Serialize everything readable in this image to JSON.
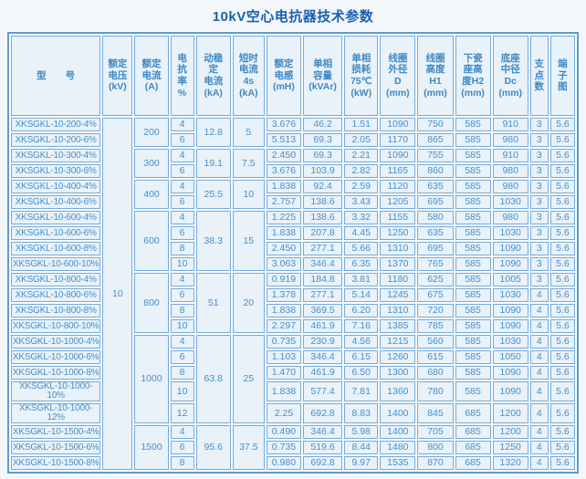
{
  "title": "10kV空心电抗器技术参数",
  "colors": {
    "title_text": "#1a61ae",
    "cell_text": "#4590c9",
    "cell_border": "#74abda",
    "outer_border": "#5b9bd5",
    "cell_background": "#e9f1f9",
    "page_background": "#f3f7fb"
  },
  "table": {
    "rated_voltage_kv": "10",
    "columns": [
      {
        "id": "model",
        "label": "型　　号"
      },
      {
        "id": "rated_voltage",
        "label": "额定\n电压\n(kV)"
      },
      {
        "id": "rated_current",
        "label": "额定\n电流\n(A)"
      },
      {
        "id": "reactance_rate",
        "label": "电\n抗\n率\n%"
      },
      {
        "id": "dynamic_stable_current",
        "label": "动稳\n定\n电流\n(kA)"
      },
      {
        "id": "short_time_current",
        "label": "短时\n电流\n4s\n(kA)"
      },
      {
        "id": "rated_inductance",
        "label": "额定\n电感\n(mH)"
      },
      {
        "id": "single_phase_capacity",
        "label": "单相\n容量\n(kVAr)"
      },
      {
        "id": "single_phase_loss",
        "label": "单相\n损耗\n75℃\n(kW)"
      },
      {
        "id": "coil_outer_diameter",
        "label": "线圈\n外径\nD\n(mm)"
      },
      {
        "id": "coil_height",
        "label": "线圈\n高度\nH1\n(mm)"
      },
      {
        "id": "porcelain_base_height",
        "label": "下瓷\n座高\n度H2\n(mm)"
      },
      {
        "id": "base_middle_diameter",
        "label": "底座\n中径\nDc\n(mm)"
      },
      {
        "id": "support_points",
        "label": "支\n点\n数"
      },
      {
        "id": "terminal_diagram",
        "label": "端\n子\n图"
      }
    ],
    "groups": [
      {
        "rated_current_a": "200",
        "dynamic_stable_current_ka": "12.8",
        "short_time_current_ka": "5",
        "rows": [
          {
            "model": "XKSGKL-10-200-4%",
            "reactance_pct": "4",
            "inductance_mh": "3.676",
            "capacity_kvar": "46.2",
            "loss_kw": "1.51",
            "coil_outer_d_mm": "1090",
            "coil_height_h1_mm": "750",
            "base_height_h2_mm": "585",
            "base_middle_dc_mm": "910",
            "support_points": "3",
            "terminal_diagram": "5.6"
          },
          {
            "model": "XKSGKL-10-200-6%",
            "reactance_pct": "6",
            "inductance_mh": "5.513",
            "capacity_kvar": "69.3",
            "loss_kw": "2.05",
            "coil_outer_d_mm": "1170",
            "coil_height_h1_mm": "865",
            "base_height_h2_mm": "585",
            "base_middle_dc_mm": "980",
            "support_points": "3",
            "terminal_diagram": "5.6"
          }
        ]
      },
      {
        "rated_current_a": "300",
        "dynamic_stable_current_ka": "19.1",
        "short_time_current_ka": "7.5",
        "rows": [
          {
            "model": "XKSGKL-10-300-4%",
            "reactance_pct": "4",
            "inductance_mh": "2.450",
            "capacity_kvar": "69.3",
            "loss_kw": "2.21",
            "coil_outer_d_mm": "1090",
            "coil_height_h1_mm": "755",
            "base_height_h2_mm": "585",
            "base_middle_dc_mm": "910",
            "support_points": "3",
            "terminal_diagram": "5.6"
          },
          {
            "model": "XKSGKL-10-300-6%",
            "reactance_pct": "6",
            "inductance_mh": "3.676",
            "capacity_kvar": "103.9",
            "loss_kw": "2.82",
            "coil_outer_d_mm": "1165",
            "coil_height_h1_mm": "860",
            "base_height_h2_mm": "585",
            "base_middle_dc_mm": "980",
            "support_points": "3",
            "terminal_diagram": "5.6"
          }
        ]
      },
      {
        "rated_current_a": "400",
        "dynamic_stable_current_ka": "25.5",
        "short_time_current_ka": "10",
        "rows": [
          {
            "model": "XKSGKL-10-400-4%",
            "reactance_pct": "4",
            "inductance_mh": "1.838",
            "capacity_kvar": "92.4",
            "loss_kw": "2.59",
            "coil_outer_d_mm": "1120",
            "coil_height_h1_mm": "635",
            "base_height_h2_mm": "585",
            "base_middle_dc_mm": "980",
            "support_points": "3",
            "terminal_diagram": "5.6"
          },
          {
            "model": "XKSGKL-10-400-6%",
            "reactance_pct": "6",
            "inductance_mh": "2.757",
            "capacity_kvar": "138.6",
            "loss_kw": "3.43",
            "coil_outer_d_mm": "1205",
            "coil_height_h1_mm": "695",
            "base_height_h2_mm": "585",
            "base_middle_dc_mm": "1030",
            "support_points": "3",
            "terminal_diagram": "5.6"
          }
        ]
      },
      {
        "rated_current_a": "600",
        "dynamic_stable_current_ka": "38.3",
        "short_time_current_ka": "15",
        "rows": [
          {
            "model": "XKSGKL-10-600-4%",
            "reactance_pct": "4",
            "inductance_mh": "1.225",
            "capacity_kvar": "138.6",
            "loss_kw": "3.32",
            "coil_outer_d_mm": "1155",
            "coil_height_h1_mm": "580",
            "base_height_h2_mm": "585",
            "base_middle_dc_mm": "980",
            "support_points": "3",
            "terminal_diagram": "5.6"
          },
          {
            "model": "XKSGKL-10-600-6%",
            "reactance_pct": "6",
            "inductance_mh": "1.838",
            "capacity_kvar": "207.8",
            "loss_kw": "4.45",
            "coil_outer_d_mm": "1250",
            "coil_height_h1_mm": "635",
            "base_height_h2_mm": "585",
            "base_middle_dc_mm": "1030",
            "support_points": "3",
            "terminal_diagram": "5.6"
          },
          {
            "model": "XKSGKL-10-600-8%",
            "reactance_pct": "8",
            "inductance_mh": "2.450",
            "capacity_kvar": "277.1",
            "loss_kw": "5.66",
            "coil_outer_d_mm": "1310",
            "coil_height_h1_mm": "695",
            "base_height_h2_mm": "585",
            "base_middle_dc_mm": "1090",
            "support_points": "3",
            "terminal_diagram": "5.6"
          },
          {
            "model": "XKSGKL-10-600-10%",
            "reactance_pct": "10",
            "inductance_mh": "3.063",
            "capacity_kvar": "346.4",
            "loss_kw": "6.35",
            "coil_outer_d_mm": "1370",
            "coil_height_h1_mm": "765",
            "base_height_h2_mm": "585",
            "base_middle_dc_mm": "1090",
            "support_points": "3",
            "terminal_diagram": "5.6"
          }
        ]
      },
      {
        "rated_current_a": "800",
        "dynamic_stable_current_ka": "51",
        "short_time_current_ka": "20",
        "rows": [
          {
            "model": "XKSGKL-10-800-4%",
            "reactance_pct": "4",
            "inductance_mh": "0.919",
            "capacity_kvar": "184.8",
            "loss_kw": "3.81",
            "coil_outer_d_mm": "1180",
            "coil_height_h1_mm": "625",
            "base_height_h2_mm": "585",
            "base_middle_dc_mm": "1005",
            "support_points": "3",
            "terminal_diagram": "5.6"
          },
          {
            "model": "XKSGKL-10-800-6%",
            "reactance_pct": "6",
            "inductance_mh": "1.378",
            "capacity_kvar": "277.1",
            "loss_kw": "5.14",
            "coil_outer_d_mm": "1245",
            "coil_height_h1_mm": "675",
            "base_height_h2_mm": "585",
            "base_middle_dc_mm": "1030",
            "support_points": "4",
            "terminal_diagram": "5.6"
          },
          {
            "model": "XKSGKL-10-800-8%",
            "reactance_pct": "8",
            "inductance_mh": "1.838",
            "capacity_kvar": "369.5",
            "loss_kw": "6.20",
            "coil_outer_d_mm": "1310",
            "coil_height_h1_mm": "720",
            "base_height_h2_mm": "585",
            "base_middle_dc_mm": "1090",
            "support_points": "4",
            "terminal_diagram": "5.6"
          },
          {
            "model": "XKSGKL-10-800-10%",
            "reactance_pct": "10",
            "inductance_mh": "2.297",
            "capacity_kvar": "461.9",
            "loss_kw": "7.16",
            "coil_outer_d_mm": "1385",
            "coil_height_h1_mm": "785",
            "base_height_h2_mm": "585",
            "base_middle_dc_mm": "1090",
            "support_points": "4",
            "terminal_diagram": "5.6"
          }
        ]
      },
      {
        "rated_current_a": "1000",
        "dynamic_stable_current_ka": "63.8",
        "short_time_current_ka": "25",
        "rows": [
          {
            "model": "XKSGKL-10-1000-4%",
            "reactance_pct": "4",
            "inductance_mh": "0.735",
            "capacity_kvar": "230.9",
            "loss_kw": "4.56",
            "coil_outer_d_mm": "1215",
            "coil_height_h1_mm": "560",
            "base_height_h2_mm": "585",
            "base_middle_dc_mm": "1030",
            "support_points": "4",
            "terminal_diagram": "5.6"
          },
          {
            "model": "XKSGKL-10-1000-6%",
            "reactance_pct": "6",
            "inductance_mh": "1.103",
            "capacity_kvar": "346.4",
            "loss_kw": "6.15",
            "coil_outer_d_mm": "1260",
            "coil_height_h1_mm": "615",
            "base_height_h2_mm": "585",
            "base_middle_dc_mm": "1050",
            "support_points": "4",
            "terminal_diagram": "5.6"
          },
          {
            "model": "XKSGKL-10-1000-8%",
            "reactance_pct": "8",
            "inductance_mh": "1.470",
            "capacity_kvar": "461.9",
            "loss_kw": "6.50",
            "coil_outer_d_mm": "1300",
            "coil_height_h1_mm": "680",
            "base_height_h2_mm": "585",
            "base_middle_dc_mm": "1090",
            "support_points": "4",
            "terminal_diagram": "5.6"
          },
          {
            "model": "XKSGKL-10-1000-10%",
            "reactance_pct": "10",
            "inductance_mh": "1.838",
            "capacity_kvar": "577.4",
            "loss_kw": "7.81",
            "coil_outer_d_mm": "1360",
            "coil_height_h1_mm": "780",
            "base_height_h2_mm": "585",
            "base_middle_dc_mm": "1090",
            "support_points": "4",
            "terminal_diagram": "5.6"
          },
          {
            "model": "XKSGKL-10-1000-12%",
            "reactance_pct": "12",
            "inductance_mh": "2.25",
            "capacity_kvar": "692.8",
            "loss_kw": "8.83",
            "coil_outer_d_mm": "1400",
            "coil_height_h1_mm": "845",
            "base_height_h2_mm": "685",
            "base_middle_dc_mm": "1200",
            "support_points": "4",
            "terminal_diagram": "5.6"
          }
        ]
      },
      {
        "rated_current_a": "1500",
        "dynamic_stable_current_ka": "95.6",
        "short_time_current_ka": "37.5",
        "rows": [
          {
            "model": "XKSGKL-10-1500-4%",
            "reactance_pct": "4",
            "inductance_mh": "0.490",
            "capacity_kvar": "346.4",
            "loss_kw": "5.98",
            "coil_outer_d_mm": "1400",
            "coil_height_h1_mm": "705",
            "base_height_h2_mm": "685",
            "base_middle_dc_mm": "1200",
            "support_points": "4",
            "terminal_diagram": "5.6"
          },
          {
            "model": "XKSGKL-10-1500-6%",
            "reactance_pct": "6",
            "inductance_mh": "0.735",
            "capacity_kvar": "519.6",
            "loss_kw": "8.44",
            "coil_outer_d_mm": "1480",
            "coil_height_h1_mm": "800",
            "base_height_h2_mm": "685",
            "base_middle_dc_mm": "1250",
            "support_points": "4",
            "terminal_diagram": "5.6"
          },
          {
            "model": "XKSGKL-10-1500-8%",
            "reactance_pct": "8",
            "inductance_mh": "0.980",
            "capacity_kvar": "692.8",
            "loss_kw": "9.97",
            "coil_outer_d_mm": "1535",
            "coil_height_h1_mm": "870",
            "base_height_h2_mm": "685",
            "base_middle_dc_mm": "1320",
            "support_points": "4",
            "terminal_diagram": "5.6"
          }
        ]
      }
    ]
  }
}
